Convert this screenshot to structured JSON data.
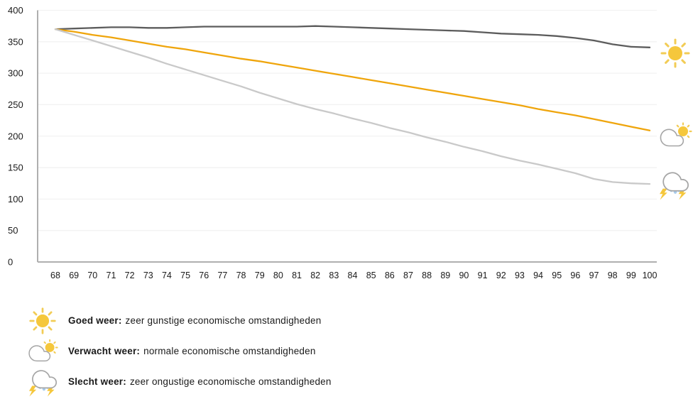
{
  "chart_data": {
    "type": "line",
    "title": "",
    "xlabel": "",
    "ylabel": "",
    "x": [
      68,
      69,
      70,
      71,
      72,
      73,
      74,
      75,
      76,
      77,
      78,
      79,
      80,
      81,
      82,
      83,
      84,
      85,
      86,
      87,
      88,
      89,
      90,
      91,
      92,
      93,
      94,
      95,
      96,
      97,
      98,
      99,
      100
    ],
    "xlim": [
      68,
      100
    ],
    "ylim": [
      0,
      400
    ],
    "yticks": [
      400,
      350,
      300,
      250,
      200,
      150,
      100,
      50,
      0
    ],
    "grid": "horizontal",
    "legend_position": "bottom-left",
    "series": [
      {
        "name": "Goed weer",
        "color": "#5C5C5C",
        "values": [
          370,
          371,
          372,
          373,
          373,
          372,
          372,
          373,
          374,
          374,
          374,
          374,
          374,
          374,
          375,
          374,
          373,
          372,
          371,
          370,
          369,
          368,
          367,
          365,
          363,
          362,
          361,
          359,
          356,
          352,
          346,
          342,
          341
        ]
      },
      {
        "name": "Verwacht weer",
        "color": "#EFA50C",
        "values": [
          370,
          366,
          361,
          357,
          352,
          347,
          342,
          338,
          333,
          328,
          323,
          319,
          314,
          309,
          304,
          299,
          294,
          289,
          284,
          279,
          274,
          269,
          264,
          259,
          254,
          249,
          243,
          238,
          233,
          227,
          221,
          215,
          209
        ]
      },
      {
        "name": "Slecht weer",
        "color": "#C9C9C9",
        "values": [
          370,
          361,
          352,
          343,
          334,
          325,
          315,
          306,
          297,
          288,
          279,
          269,
          260,
          251,
          243,
          236,
          228,
          221,
          213,
          206,
          198,
          191,
          183,
          176,
          168,
          161,
          155,
          148,
          141,
          132,
          127,
          125,
          124
        ]
      }
    ],
    "side_markers": [
      {
        "icon": "sun-icon",
        "series": "Goed weer"
      },
      {
        "icon": "cloud-sun-icon",
        "series": "Verwacht weer"
      },
      {
        "icon": "storm-cloud-icon",
        "series": "Slecht weer"
      }
    ]
  },
  "legend": {
    "items": [
      {
        "icon": "sun-icon",
        "term": "Goed weer:",
        "description": "zeer gunstige economische omstandigheden"
      },
      {
        "icon": "cloud-sun-icon",
        "term": "Verwacht weer:",
        "description": "normale economische omstandigheden"
      },
      {
        "icon": "storm-cloud-icon",
        "term": "Slecht weer:",
        "description": "zeer ongustige economische omstandigheden"
      }
    ]
  },
  "colors": {
    "good_line": "#5C5C5C",
    "expected_line": "#EFA50C",
    "bad_line": "#C9C9C9",
    "gridline": "#F2F2F2",
    "axis": "#AFAFAF",
    "sun_fill": "#F5C73C",
    "sun_ray": "#F2CC55",
    "cloud_stroke": "#A5A5A5",
    "rain_drop": "#A9CBEA",
    "lightning": "#F5C73C",
    "text": "#1A1A1A"
  }
}
